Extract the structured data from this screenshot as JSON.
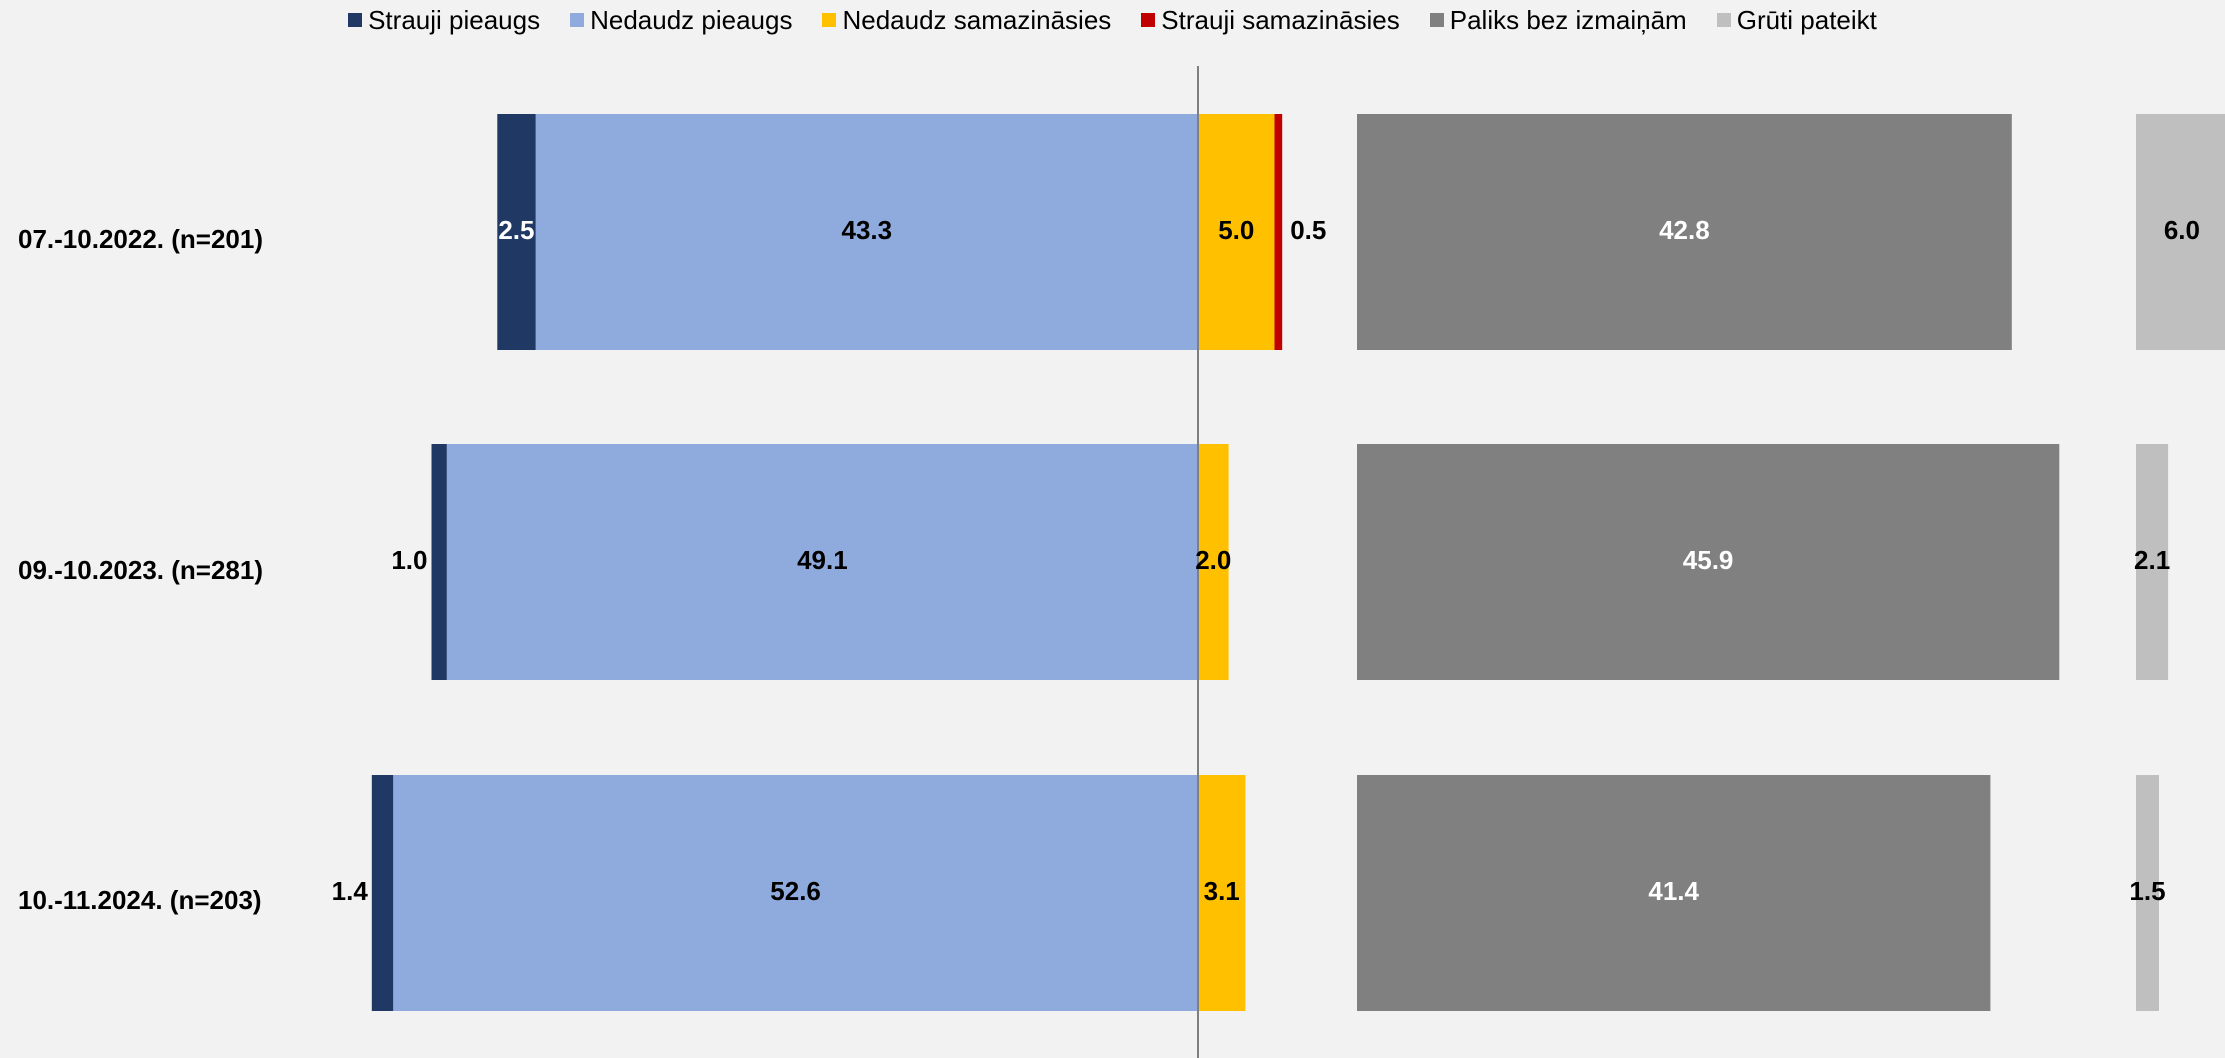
{
  "chart_data": {
    "type": "bar",
    "orientation": "horizontal",
    "stacked": "diverging",
    "grid": false,
    "legend_position": "top",
    "categories": [
      "07.-10.2022. (n=201)",
      "09.-10.2023. (n=281)",
      "10.-11.2024. (n=203)"
    ],
    "series": [
      {
        "name": "Strauji pieaugs",
        "color": "#203864",
        "label_color": "#000000",
        "values": [
          2.5,
          1.0,
          1.4
        ]
      },
      {
        "name": "Nedaudz pieaugs",
        "color": "#8faadc",
        "label_color": "#000000",
        "values": [
          43.3,
          49.1,
          52.6
        ]
      },
      {
        "name": "Nedaudz samazināsies",
        "color": "#ffc000",
        "label_color": "#000000",
        "values": [
          5.0,
          2.0,
          3.1
        ]
      },
      {
        "name": "Strauji samazināsies",
        "color": "#c00000",
        "label_color": "#000000",
        "values": [
          0.5,
          0.0,
          0.0
        ]
      },
      {
        "name": "Paliks bez izmaiņām",
        "color": "#808080",
        "label_color": "#ffffff",
        "values": [
          42.8,
          45.9,
          41.4
        ]
      },
      {
        "name": "Grūti pateikt",
        "color": "#bfbfbf",
        "label_color": "#000000",
        "values": [
          6.0,
          2.1,
          1.5
        ]
      }
    ],
    "data_labels": [
      [
        "2.5",
        "43.3",
        "5.0",
        "0.5",
        "42.8",
        "6.0"
      ],
      [
        "1.0",
        "49.1",
        "2.0",
        "",
        "45.9",
        "2.1"
      ],
      [
        "1.4",
        "52.6",
        "3.1",
        "",
        "41.4",
        "1.5"
      ]
    ]
  }
}
